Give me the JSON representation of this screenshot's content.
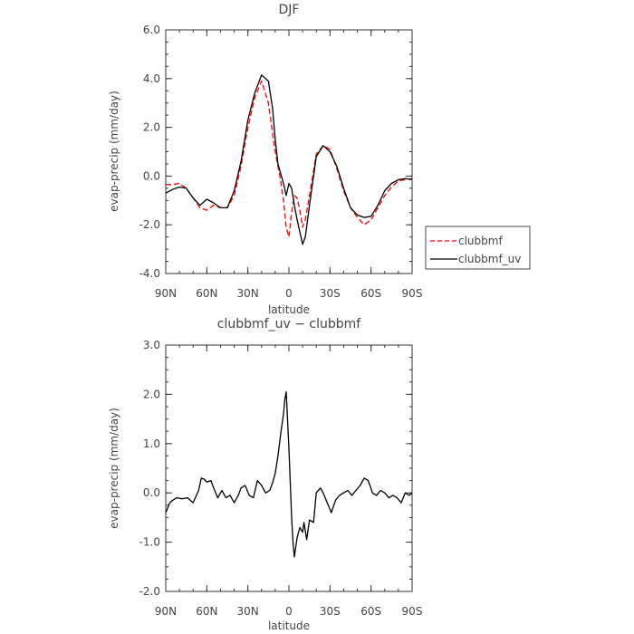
{
  "chart_data": [
    {
      "type": "line",
      "title": "DJF",
      "xlabel": "latitude",
      "ylabel": "evap-precip (mm/day)",
      "xlim": [
        90,
        -90
      ],
      "ylim": [
        -4.0,
        6.0
      ],
      "xticks": [
        90,
        60,
        30,
        0,
        -30,
        -60,
        -90
      ],
      "xtick_labels": [
        "90N",
        "60N",
        "30N",
        "0",
        "30S",
        "60S",
        "90S"
      ],
      "yticks": [
        -4,
        -2,
        0,
        2,
        4,
        6
      ],
      "ytick_labels": [
        "-4.0",
        "-2.0",
        "0.0",
        "2.0",
        "4.0",
        "6.0"
      ],
      "legend_position": "right",
      "series": [
        {
          "name": "clubbmf",
          "color": "#ff0000",
          "dashed": true,
          "x": [
            90,
            85,
            80,
            75,
            70,
            65,
            60,
            55,
            50,
            45,
            40,
            35,
            30,
            25,
            20,
            15,
            10,
            8,
            6,
            4,
            2,
            0,
            -2,
            -4,
            -6,
            -8,
            -10,
            -12,
            -15,
            -20,
            -25,
            -30,
            -35,
            -40,
            -45,
            -50,
            -55,
            -60,
            -65,
            -70,
            -75,
            -80,
            -85,
            -90
          ],
          "y": [
            -0.35,
            -0.35,
            -0.3,
            -0.5,
            -0.9,
            -1.3,
            -1.4,
            -1.2,
            -1.3,
            -1.3,
            -0.8,
            0.4,
            2.0,
            3.2,
            3.9,
            3.0,
            1.0,
            0.4,
            -0.2,
            -1.0,
            -2.1,
            -2.5,
            -1.5,
            -0.8,
            -0.9,
            -1.4,
            -2.1,
            -1.8,
            -0.8,
            0.9,
            1.25,
            1.1,
            0.3,
            -0.6,
            -1.3,
            -1.7,
            -2.0,
            -1.8,
            -1.3,
            -0.8,
            -0.45,
            -0.2,
            -0.15,
            -0.1
          ]
        },
        {
          "name": "clubbmf_uv",
          "color": "#000000",
          "dashed": false,
          "x": [
            90,
            85,
            80,
            75,
            70,
            65,
            60,
            55,
            50,
            45,
            40,
            35,
            30,
            25,
            20,
            15,
            12,
            10,
            8,
            6,
            4,
            2,
            0,
            -2,
            -4,
            -6,
            -8,
            -10,
            -12,
            -15,
            -20,
            -25,
            -30,
            -35,
            -40,
            -45,
            -50,
            -55,
            -60,
            -65,
            -70,
            -75,
            -80,
            -85,
            -90
          ],
          "y": [
            -0.7,
            -0.55,
            -0.45,
            -0.5,
            -0.9,
            -1.2,
            -0.95,
            -1.1,
            -1.3,
            -1.3,
            -0.6,
            0.6,
            2.3,
            3.4,
            4.15,
            3.9,
            2.8,
            1.5,
            0.5,
            0.1,
            -0.3,
            -0.8,
            -0.3,
            -0.5,
            -1.2,
            -1.8,
            -2.3,
            -2.8,
            -2.5,
            -1.2,
            0.8,
            1.25,
            1.0,
            0.4,
            -0.5,
            -1.3,
            -1.6,
            -1.7,
            -1.65,
            -1.2,
            -0.6,
            -0.3,
            -0.15,
            -0.1,
            -0.15
          ]
        }
      ]
    },
    {
      "type": "line",
      "title": "clubbmf_uv − clubbmf",
      "xlabel": "latitude",
      "ylabel": "evap-precip (mm/day)",
      "xlim": [
        90,
        -90
      ],
      "ylim": [
        -2.0,
        3.0
      ],
      "xticks": [
        90,
        60,
        30,
        0,
        -30,
        -60,
        -90
      ],
      "xtick_labels": [
        "90N",
        "60N",
        "30N",
        "0",
        "30S",
        "60S",
        "90S"
      ],
      "yticks": [
        -2,
        -1,
        0,
        1,
        2,
        3
      ],
      "ytick_labels": [
        "-2.0",
        "-1.0",
        "0.0",
        "1.0",
        "2.0",
        "3.0"
      ],
      "series": [
        {
          "color": "#000000",
          "dashed": false,
          "x": [
            90,
            87,
            85,
            82,
            78,
            74,
            70,
            66,
            64,
            62,
            60,
            57,
            55,
            52,
            49,
            46,
            43,
            40,
            37,
            35,
            32,
            29,
            26,
            23,
            20,
            17,
            14,
            12,
            10,
            8,
            6,
            4,
            3,
            2,
            0,
            -2,
            -3,
            -4,
            -6,
            -8,
            -10,
            -11,
            -13,
            -15,
            -18,
            -20,
            -23,
            -25,
            -28,
            -31,
            -34,
            -37,
            -40,
            -43,
            -46,
            -49,
            -52,
            -55,
            -58,
            -61,
            -64,
            -67,
            -70,
            -73,
            -76,
            -79,
            -82,
            -85,
            -88,
            -90
          ],
          "y": [
            -0.4,
            -0.2,
            -0.15,
            -0.1,
            -0.12,
            -0.1,
            -0.2,
            0.05,
            0.3,
            0.28,
            0.22,
            0.25,
            0.1,
            -0.1,
            0.05,
            -0.1,
            -0.05,
            -0.2,
            -0.05,
            0.1,
            0.15,
            -0.05,
            -0.1,
            0.25,
            0.15,
            0.0,
            0.05,
            0.2,
            0.4,
            0.75,
            1.2,
            1.6,
            1.9,
            2.05,
            0.9,
            -0.5,
            -1.0,
            -1.3,
            -0.9,
            -0.7,
            -0.8,
            -0.6,
            -0.95,
            -0.55,
            -0.6,
            0.0,
            0.1,
            0.0,
            -0.2,
            -0.4,
            -0.15,
            -0.05,
            0.0,
            0.05,
            -0.05,
            0.05,
            0.15,
            0.3,
            0.25,
            0.0,
            -0.05,
            0.05,
            0.0,
            -0.1,
            -0.05,
            -0.1,
            -0.2,
            0.0,
            -0.05,
            0.0
          ]
        }
      ]
    }
  ]
}
